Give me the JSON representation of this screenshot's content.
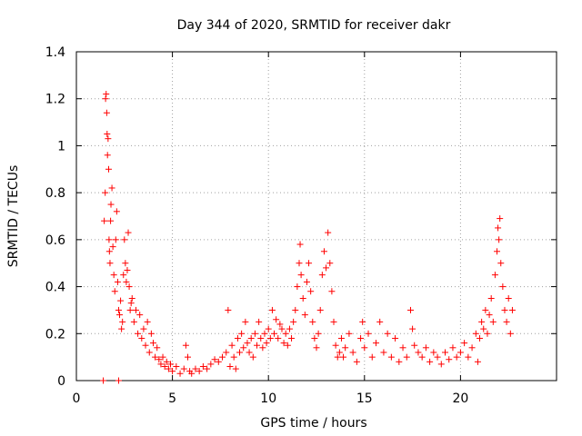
{
  "chart_data": {
    "type": "scatter",
    "title": "Day 344 of 2020, SRMTID for receiver dakr",
    "xlabel": "GPS time / hours",
    "ylabel": "SRMTID / TECUs",
    "xlim": [
      0,
      25
    ],
    "ylim": [
      0,
      1.4
    ],
    "xticks": [
      0,
      5,
      10,
      15,
      20
    ],
    "xtick_labels": [
      "0",
      "5",
      "10",
      "15",
      "20"
    ],
    "yticks": [
      0,
      0.2,
      0.4,
      0.6,
      0.8,
      1.0,
      1.2,
      1.4
    ],
    "ytick_labels": [
      "0",
      "0.2",
      "0.4",
      "0.6",
      "0.8",
      "1",
      "1.2",
      "1.4"
    ],
    "grid": true,
    "marker": "plus",
    "color": "#ff0000",
    "series": [
      {
        "name": "SRMTID",
        "points": [
          [
            1.4,
            0.0
          ],
          [
            2.2,
            0.0
          ],
          [
            1.45,
            0.68
          ],
          [
            1.5,
            0.8
          ],
          [
            1.52,
            1.2
          ],
          [
            1.55,
            1.22
          ],
          [
            1.58,
            1.14
          ],
          [
            1.6,
            1.05
          ],
          [
            1.62,
            0.96
          ],
          [
            1.65,
            1.03
          ],
          [
            1.68,
            0.9
          ],
          [
            1.7,
            0.6
          ],
          [
            1.72,
            0.55
          ],
          [
            1.75,
            0.5
          ],
          [
            1.78,
            0.68
          ],
          [
            1.8,
            0.75
          ],
          [
            1.85,
            0.82
          ],
          [
            1.9,
            0.57
          ],
          [
            1.95,
            0.45
          ],
          [
            2.0,
            0.38
          ],
          [
            2.05,
            0.6
          ],
          [
            2.1,
            0.72
          ],
          [
            2.15,
            0.42
          ],
          [
            2.2,
            0.3
          ],
          [
            2.25,
            0.28
          ],
          [
            2.3,
            0.34
          ],
          [
            2.35,
            0.22
          ],
          [
            2.4,
            0.25
          ],
          [
            2.45,
            0.45
          ],
          [
            2.5,
            0.6
          ],
          [
            2.55,
            0.5
          ],
          [
            2.6,
            0.42
          ],
          [
            2.65,
            0.47
          ],
          [
            2.7,
            0.63
          ],
          [
            2.75,
            0.4
          ],
          [
            2.8,
            0.3
          ],
          [
            2.85,
            0.33
          ],
          [
            2.9,
            0.35
          ],
          [
            3.0,
            0.25
          ],
          [
            3.1,
            0.3
          ],
          [
            3.2,
            0.2
          ],
          [
            3.3,
            0.28
          ],
          [
            3.4,
            0.18
          ],
          [
            3.5,
            0.22
          ],
          [
            3.6,
            0.15
          ],
          [
            3.7,
            0.25
          ],
          [
            3.8,
            0.12
          ],
          [
            3.9,
            0.2
          ],
          [
            4.0,
            0.16
          ],
          [
            4.1,
            0.1
          ],
          [
            4.2,
            0.14
          ],
          [
            4.3,
            0.09
          ],
          [
            4.4,
            0.07
          ],
          [
            4.5,
            0.1
          ],
          [
            4.6,
            0.06
          ],
          [
            4.7,
            0.08
          ],
          [
            4.8,
            0.05
          ],
          [
            4.9,
            0.07
          ],
          [
            5.0,
            0.04
          ],
          [
            5.2,
            0.06
          ],
          [
            5.4,
            0.03
          ],
          [
            5.6,
            0.05
          ],
          [
            5.7,
            0.15
          ],
          [
            5.8,
            0.1
          ],
          [
            5.9,
            0.04
          ],
          [
            6.0,
            0.03
          ],
          [
            6.2,
            0.05
          ],
          [
            6.4,
            0.04
          ],
          [
            6.6,
            0.06
          ],
          [
            6.8,
            0.05
          ],
          [
            7.0,
            0.07
          ],
          [
            7.2,
            0.09
          ],
          [
            7.4,
            0.08
          ],
          [
            7.6,
            0.1
          ],
          [
            7.8,
            0.12
          ],
          [
            7.9,
            0.3
          ],
          [
            8.0,
            0.06
          ],
          [
            8.1,
            0.15
          ],
          [
            8.2,
            0.1
          ],
          [
            8.3,
            0.05
          ],
          [
            8.4,
            0.18
          ],
          [
            8.5,
            0.12
          ],
          [
            8.6,
            0.2
          ],
          [
            8.7,
            0.14
          ],
          [
            8.8,
            0.25
          ],
          [
            8.9,
            0.16
          ],
          [
            9.0,
            0.12
          ],
          [
            9.1,
            0.18
          ],
          [
            9.2,
            0.1
          ],
          [
            9.3,
            0.2
          ],
          [
            9.4,
            0.15
          ],
          [
            9.5,
            0.25
          ],
          [
            9.6,
            0.18
          ],
          [
            9.7,
            0.14
          ],
          [
            9.8,
            0.2
          ],
          [
            9.9,
            0.16
          ],
          [
            10.0,
            0.22
          ],
          [
            10.1,
            0.18
          ],
          [
            10.2,
            0.3
          ],
          [
            10.3,
            0.2
          ],
          [
            10.4,
            0.26
          ],
          [
            10.5,
            0.18
          ],
          [
            10.6,
            0.24
          ],
          [
            10.7,
            0.22
          ],
          [
            10.8,
            0.16
          ],
          [
            10.9,
            0.2
          ],
          [
            11.0,
            0.15
          ],
          [
            11.1,
            0.22
          ],
          [
            11.2,
            0.18
          ],
          [
            11.3,
            0.25
          ],
          [
            11.4,
            0.3
          ],
          [
            11.5,
            0.4
          ],
          [
            11.6,
            0.5
          ],
          [
            11.65,
            0.58
          ],
          [
            11.7,
            0.45
          ],
          [
            11.8,
            0.35
          ],
          [
            11.9,
            0.28
          ],
          [
            12.0,
            0.42
          ],
          [
            12.1,
            0.5
          ],
          [
            12.2,
            0.38
          ],
          [
            12.3,
            0.25
          ],
          [
            12.4,
            0.18
          ],
          [
            12.5,
            0.14
          ],
          [
            12.6,
            0.2
          ],
          [
            12.7,
            0.3
          ],
          [
            12.8,
            0.45
          ],
          [
            12.9,
            0.55
          ],
          [
            13.0,
            0.48
          ],
          [
            13.1,
            0.63
          ],
          [
            13.2,
            0.5
          ],
          [
            13.3,
            0.38
          ],
          [
            13.4,
            0.25
          ],
          [
            13.5,
            0.15
          ],
          [
            13.6,
            0.1
          ],
          [
            13.7,
            0.12
          ],
          [
            13.8,
            0.18
          ],
          [
            13.9,
            0.1
          ],
          [
            14.0,
            0.14
          ],
          [
            14.2,
            0.2
          ],
          [
            14.4,
            0.12
          ],
          [
            14.6,
            0.08
          ],
          [
            14.8,
            0.18
          ],
          [
            14.9,
            0.25
          ],
          [
            15.0,
            0.14
          ],
          [
            15.2,
            0.2
          ],
          [
            15.4,
            0.1
          ],
          [
            15.6,
            0.16
          ],
          [
            15.8,
            0.25
          ],
          [
            16.0,
            0.12
          ],
          [
            16.2,
            0.2
          ],
          [
            16.4,
            0.1
          ],
          [
            16.6,
            0.18
          ],
          [
            16.8,
            0.08
          ],
          [
            17.0,
            0.14
          ],
          [
            17.2,
            0.1
          ],
          [
            17.4,
            0.3
          ],
          [
            17.5,
            0.22
          ],
          [
            17.6,
            0.15
          ],
          [
            17.8,
            0.12
          ],
          [
            18.0,
            0.1
          ],
          [
            18.2,
            0.14
          ],
          [
            18.4,
            0.08
          ],
          [
            18.6,
            0.12
          ],
          [
            18.8,
            0.1
          ],
          [
            19.0,
            0.07
          ],
          [
            19.2,
            0.12
          ],
          [
            19.4,
            0.09
          ],
          [
            19.6,
            0.14
          ],
          [
            19.8,
            0.1
          ],
          [
            20.0,
            0.12
          ],
          [
            20.2,
            0.16
          ],
          [
            20.4,
            0.1
          ],
          [
            20.6,
            0.14
          ],
          [
            20.8,
            0.2
          ],
          [
            20.9,
            0.08
          ],
          [
            21.0,
            0.18
          ],
          [
            21.1,
            0.25
          ],
          [
            21.2,
            0.22
          ],
          [
            21.3,
            0.3
          ],
          [
            21.4,
            0.2
          ],
          [
            21.5,
            0.28
          ],
          [
            21.6,
            0.35
          ],
          [
            21.7,
            0.25
          ],
          [
            21.8,
            0.45
          ],
          [
            21.9,
            0.55
          ],
          [
            21.95,
            0.65
          ],
          [
            22.0,
            0.6
          ],
          [
            22.05,
            0.69
          ],
          [
            22.1,
            0.5
          ],
          [
            22.2,
            0.4
          ],
          [
            22.3,
            0.3
          ],
          [
            22.4,
            0.25
          ],
          [
            22.5,
            0.35
          ],
          [
            22.6,
            0.2
          ],
          [
            22.7,
            0.3
          ]
        ]
      }
    ]
  }
}
